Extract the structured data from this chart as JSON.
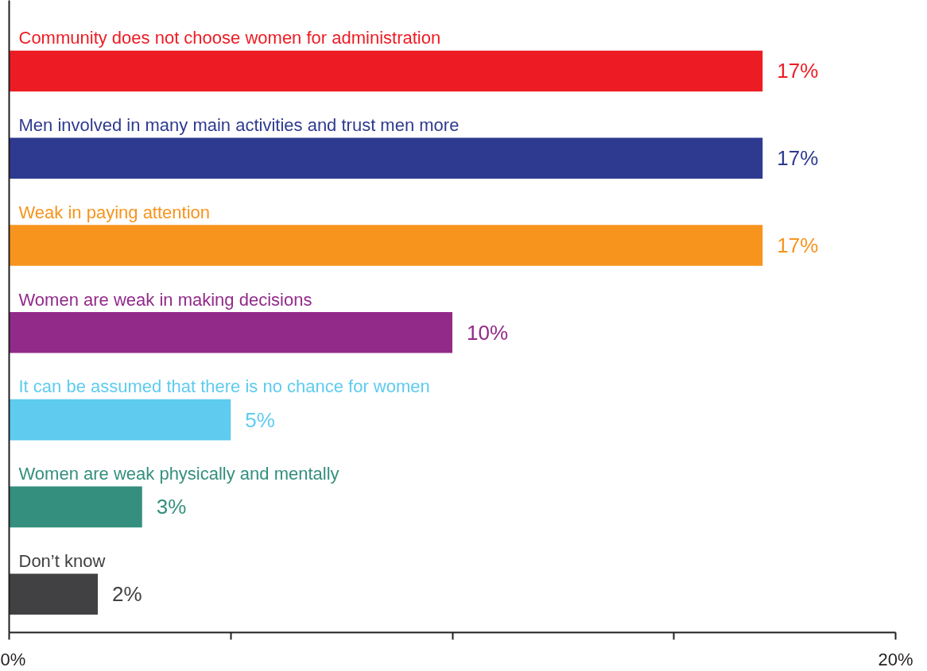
{
  "chart_data": {
    "type": "bar",
    "orientation": "horizontal",
    "categories": [
      "Community does not choose women for administration",
      "Men involved in many main activities and trust men more",
      "Weak in paying attention",
      "Women are weak in making decisions",
      "It can be assumed that there is no chance for women",
      "Women are weak physically and mentally",
      "Don’t know"
    ],
    "values": [
      17,
      17,
      17,
      10,
      5,
      3,
      2
    ],
    "colors": [
      "#ed1c24",
      "#2e3a8f",
      "#f7941d",
      "#922a8a",
      "#5ecbef",
      "#348f7e",
      "#414042"
    ],
    "value_labels": [
      "17%",
      "17%",
      "17%",
      "10%",
      "5%",
      "3%",
      "2%"
    ],
    "xlim": [
      0,
      20
    ],
    "xticks": [
      {
        "value": 0,
        "label": "0%"
      },
      {
        "value": 5,
        "label": null
      },
      {
        "value": 10,
        "label": null
      },
      {
        "value": 15,
        "label": null
      },
      {
        "value": 20,
        "label": "20%"
      }
    ],
    "grid": false
  }
}
